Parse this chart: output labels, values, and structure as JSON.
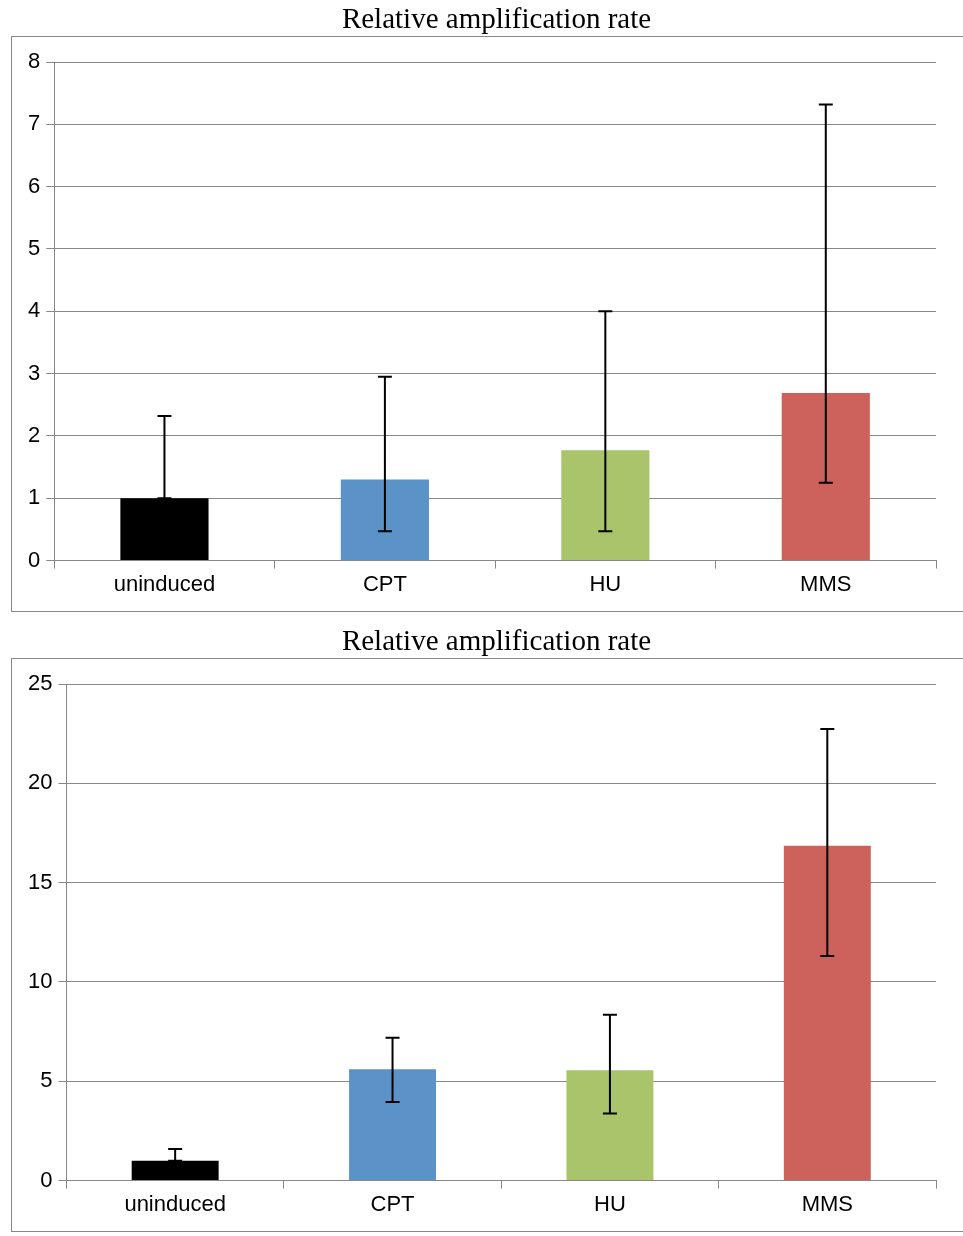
{
  "chart_data": [
    {
      "type": "bar",
      "title": "Relative amplification rate",
      "categories": [
        "uninduced",
        "CPT",
        "HU",
        "MMS"
      ],
      "values": [
        1.0,
        1.3,
        1.77,
        2.69
      ],
      "colors": [
        "#000000",
        "#5b93c9",
        "#a9c46b",
        "#cd625c"
      ],
      "errors": [
        [
          1.0,
          2.32
        ],
        [
          0.47,
          2.95
        ],
        [
          0.47,
          4.0
        ],
        [
          1.25,
          7.32
        ]
      ],
      "ylim": [
        0,
        8
      ],
      "yticks": [
        0,
        1,
        2,
        3,
        4,
        5,
        6,
        7,
        8
      ],
      "grid": "y",
      "legend": false
    },
    {
      "type": "bar",
      "title": "Relative amplification rate",
      "categories": [
        "uninduced",
        "CPT",
        "HU",
        "MMS"
      ],
      "values": [
        1.0,
        5.6,
        5.55,
        16.86
      ],
      "colors": [
        "#000000",
        "#5b93c9",
        "#a9c46b",
        "#cd625c"
      ],
      "errors": [
        [
          1.0,
          1.59
        ],
        [
          3.96,
          7.19
        ],
        [
          3.38,
          8.35
        ],
        [
          11.31,
          22.73
        ]
      ],
      "ylim": [
        0,
        25
      ],
      "yticks": [
        0,
        5,
        10,
        15,
        20,
        25
      ],
      "grid": "y",
      "legend": false
    }
  ]
}
